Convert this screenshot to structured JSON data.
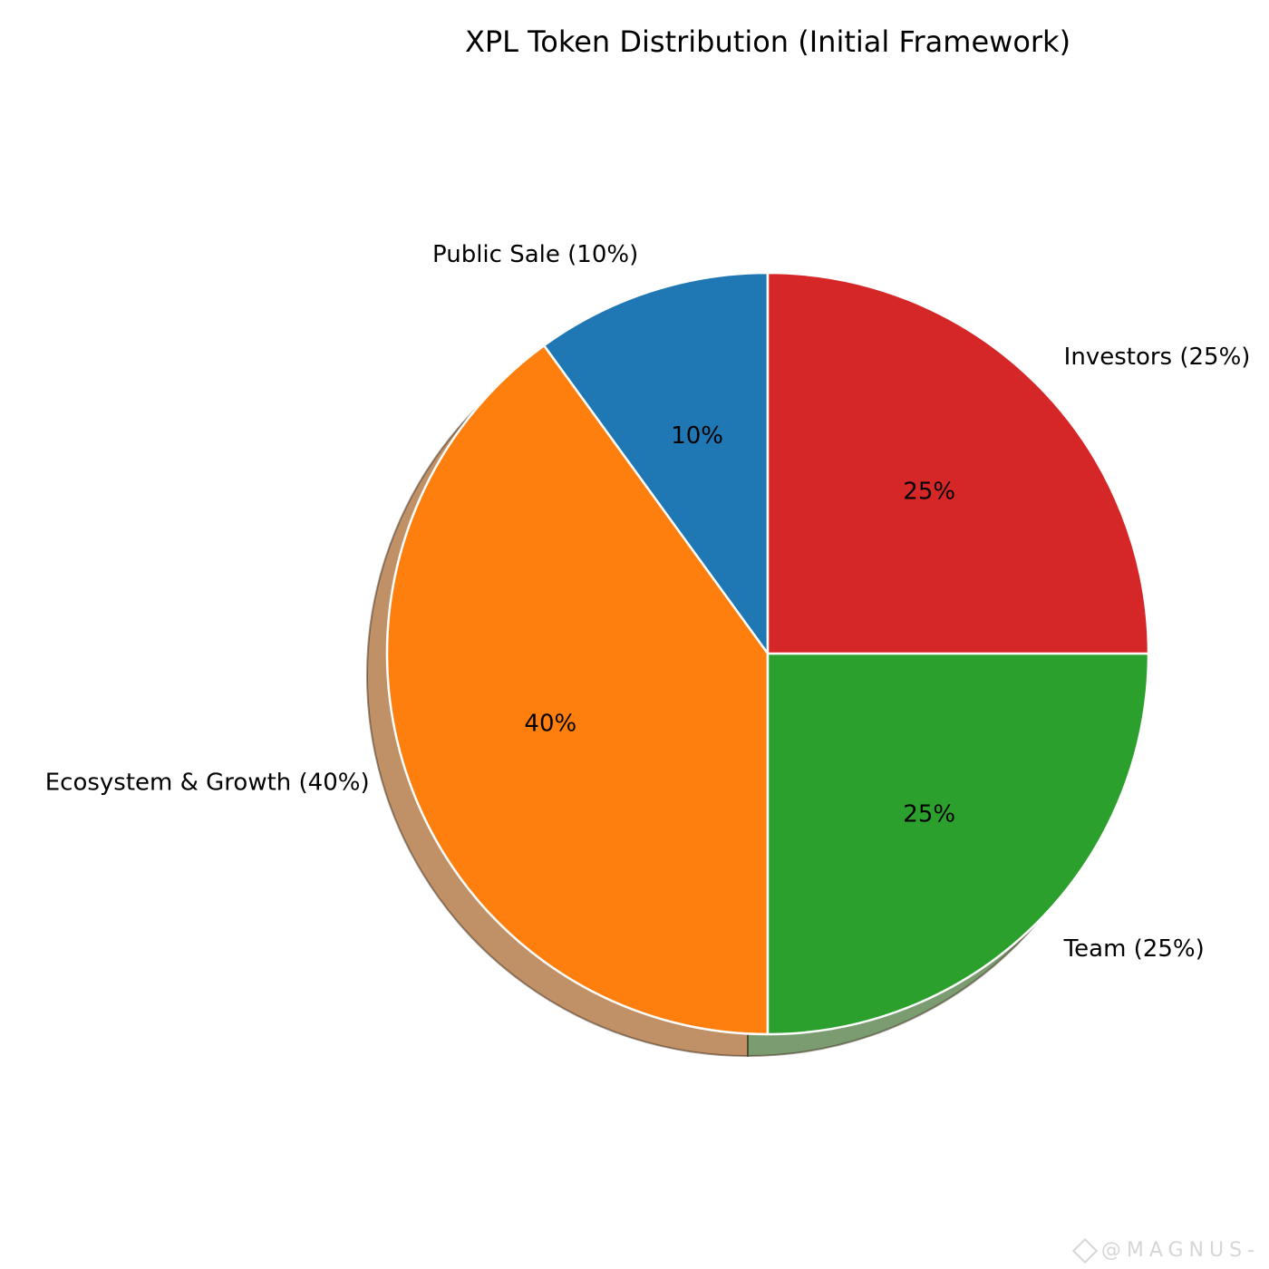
{
  "chart_data": {
    "type": "pie",
    "title": "XPL Token Distribution (Initial Framework)",
    "slices": [
      {
        "label": "Public Sale (10%)",
        "value": 10,
        "pct_label": "10%",
        "color": "#1f77b4"
      },
      {
        "label": "Ecosystem & Growth (40%)",
        "value": 40,
        "pct_label": "40%",
        "color": "#ff7f0e"
      },
      {
        "label": "Team (25%)",
        "value": 25,
        "pct_label": "25%",
        "color": "#2ca02c"
      },
      {
        "label": "Investors (25%)",
        "value": 25,
        "pct_label": "25%",
        "color": "#d62728"
      }
    ],
    "shadow": true,
    "start_angle": "top, counter-clockwise",
    "legend": "none"
  },
  "watermark": {
    "text": "@MAGNUS-"
  }
}
